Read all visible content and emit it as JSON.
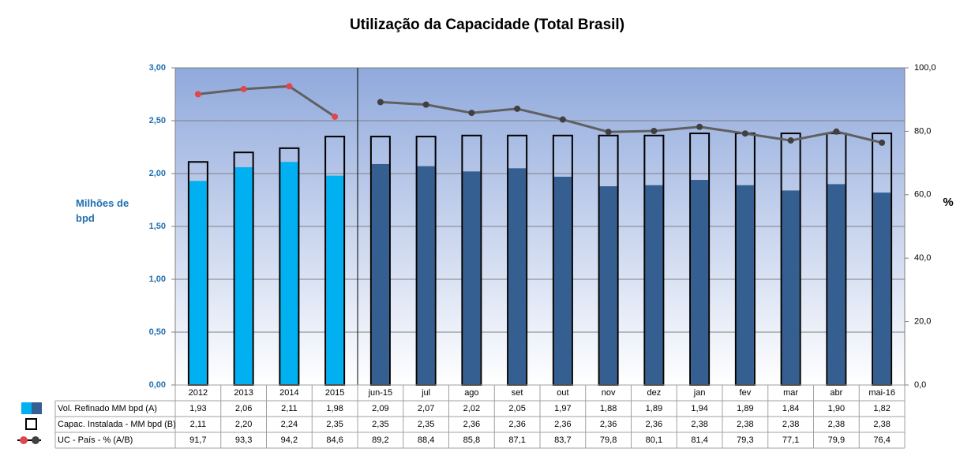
{
  "chart_data": {
    "type": "bar",
    "title": "Utilização da Capacidade  (Total Brasil)",
    "y_label": "Milhões de bpd",
    "y2_label": "%",
    "categories": [
      "2012",
      "2013",
      "2014",
      "2015",
      "jun-15",
      "jul",
      "ago",
      "set",
      "out",
      "nov",
      "dez",
      "jan",
      "fev",
      "mar",
      "abr",
      "mai-16"
    ],
    "series": [
      {
        "name": "Vol. Refinado MM bpd (A)",
        "type": "bar",
        "colors": [
          "#00b0f0",
          "#00b0f0",
          "#00b0f0",
          "#00b0f0",
          "#365f91",
          "#365f91",
          "#365f91",
          "#365f91",
          "#365f91",
          "#365f91",
          "#365f91",
          "#365f91",
          "#365f91",
          "#365f91",
          "#365f91",
          "#365f91"
        ],
        "values": [
          1.93,
          2.06,
          2.11,
          1.98,
          2.09,
          2.07,
          2.02,
          2.05,
          1.97,
          1.88,
          1.89,
          1.94,
          1.89,
          1.84,
          1.9,
          1.82
        ],
        "value_labels": [
          "1,93",
          "2,06",
          "2,11",
          "1,98",
          "2,09",
          "2,07",
          "2,02",
          "2,05",
          "1,97",
          "1,88",
          "1,89",
          "1,94",
          "1,89",
          "1,84",
          "1,90",
          "1,82"
        ]
      },
      {
        "name": "Capac. Instalada - MM bpd (B)",
        "type": "box",
        "color": "#000000",
        "values": [
          2.11,
          2.2,
          2.24,
          2.35,
          2.35,
          2.35,
          2.36,
          2.36,
          2.36,
          2.36,
          2.36,
          2.38,
          2.38,
          2.38,
          2.38,
          2.38
        ],
        "value_labels": [
          "2,11",
          "2,20",
          "2,24",
          "2,35",
          "2,35",
          "2,35",
          "2,36",
          "2,36",
          "2,36",
          "2,36",
          "2,36",
          "2,38",
          "2,38",
          "2,38",
          "2,38",
          "2,38"
        ]
      },
      {
        "name": "UC - País - % (A/B)",
        "type": "line",
        "axis": "y2",
        "color": "#606060",
        "marker_colors": [
          "#e0474c",
          "#e0474c",
          "#e0474c",
          "#e0474c",
          "#404040",
          "#404040",
          "#404040",
          "#404040",
          "#404040",
          "#404040",
          "#404040",
          "#404040",
          "#404040",
          "#404040",
          "#404040",
          "#404040"
        ],
        "values": [
          91.7,
          93.3,
          94.2,
          84.6,
          89.2,
          88.4,
          85.8,
          87.1,
          83.7,
          79.8,
          80.1,
          81.4,
          79.3,
          77.1,
          79.9,
          76.4
        ],
        "value_labels": [
          "91,7",
          "93,3",
          "94,2",
          "84,6",
          "89,2",
          "88,4",
          "85,8",
          "87,1",
          "83,7",
          "79,8",
          "80,1",
          "81,4",
          "79,3",
          "77,1",
          "79,9",
          "76,4"
        ]
      }
    ],
    "ylim": [
      0,
      3
    ],
    "yticks": [
      {
        "value": 0,
        "label": "0,00"
      },
      {
        "value": 0.5,
        "label": "0,50"
      },
      {
        "value": 1,
        "label": "1,00"
      },
      {
        "value": 1.5,
        "label": "1,50"
      },
      {
        "value": 2,
        "label": "2,00"
      },
      {
        "value": 2.5,
        "label": "2,50"
      },
      {
        "value": 3,
        "label": "3,00"
      }
    ],
    "y2lim": [
      0,
      100
    ],
    "y2ticks": [
      {
        "value": 0,
        "label": "0,0"
      },
      {
        "value": 20,
        "label": "20,0"
      },
      {
        "value": 40,
        "label": "40,0"
      },
      {
        "value": 60,
        "label": "60,0"
      },
      {
        "value": 80,
        "label": "80,0"
      },
      {
        "value": 100,
        "label": "100,0"
      }
    ],
    "grid": true
  }
}
